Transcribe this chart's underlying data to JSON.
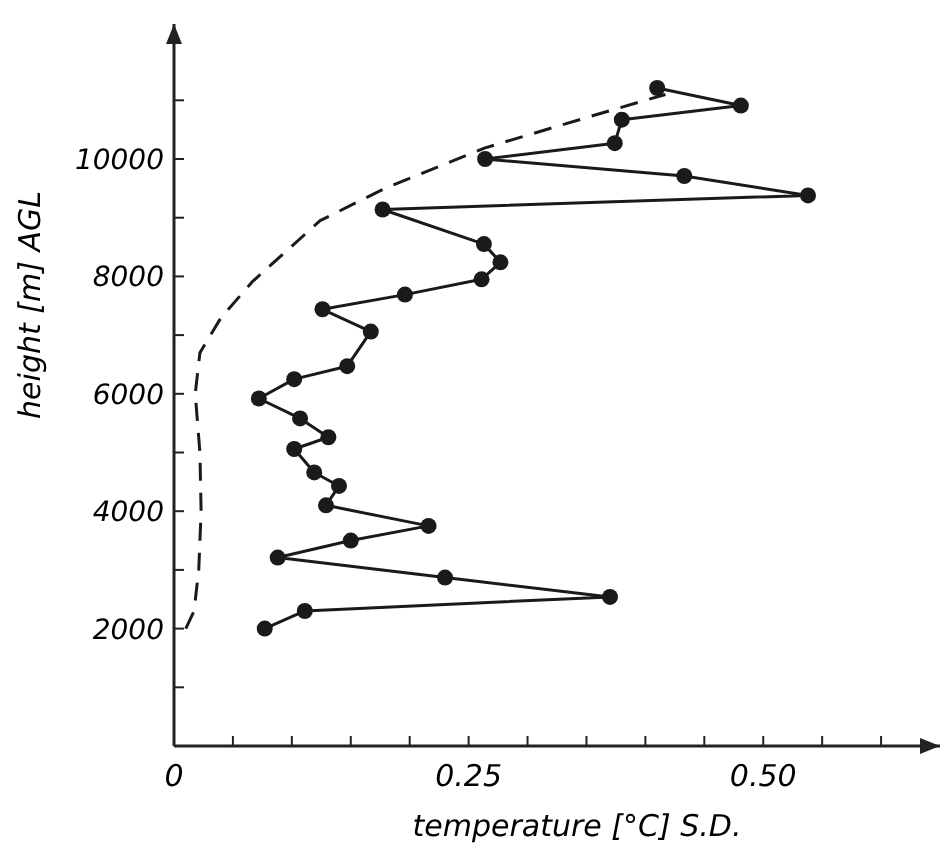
{
  "chart_data": {
    "type": "line",
    "xlabel": "temperature [°C] S.D.",
    "ylabel": "height [m] AGL",
    "xlim": [
      0,
      0.65
    ],
    "ylim": [
      0,
      12300
    ],
    "xticks": [
      0,
      {
        "value": 0.05,
        "label": null
      },
      {
        "value": 0.1,
        "label": null
      },
      {
        "value": 0.15,
        "label": null
      },
      {
        "value": 0.2,
        "label": null
      },
      {
        "value": 0.25,
        "label": "0.25"
      },
      {
        "value": 0.3,
        "label": null
      },
      {
        "value": 0.35,
        "label": null
      },
      {
        "value": 0.4,
        "label": null
      },
      {
        "value": 0.45,
        "label": null
      },
      {
        "value": 0.5,
        "label": "0.50"
      },
      {
        "value": 0.55,
        "label": null
      },
      {
        "value": 0.6,
        "label": null
      }
    ],
    "yticks": [
      {
        "value": 1000,
        "label": null
      },
      2000,
      {
        "value": 3000,
        "label": null
      },
      4000,
      {
        "value": 5000,
        "label": null
      },
      6000,
      {
        "value": 7000,
        "label": null
      },
      8000,
      {
        "value": 9000,
        "label": null
      },
      10000,
      {
        "value": 11000,
        "label": null
      }
    ],
    "grid": false,
    "series": [
      {
        "color": "#1a1a1a",
        "marker": "circle",
        "line_style": "solid",
        "x": [
          0.077,
          0.111,
          0.37,
          0.23,
          0.088,
          0.15,
          0.216,
          0.129,
          0.14,
          0.119,
          0.102,
          0.131,
          0.107,
          0.072,
          0.102,
          0.147,
          0.167,
          0.126,
          0.196,
          0.261,
          0.277,
          0.263,
          0.177,
          0.538,
          0.433,
          0.264,
          0.374,
          0.38,
          0.481,
          0.41
        ],
        "values": [
          2000,
          2300,
          2540,
          2870,
          3210,
          3500,
          3750,
          4100,
          4430,
          4660,
          5060,
          5260,
          5580,
          5920,
          6250,
          6470,
          7060,
          7440,
          7690,
          7950,
          8240,
          8550,
          9140,
          9380,
          9710,
          10000,
          10270,
          10670,
          10910,
          11210
        ]
      },
      {
        "color": "#1a1a1a",
        "marker": "none",
        "line_style": "dashed",
        "x": [
          0.01,
          0.017,
          0.021,
          0.023,
          0.022,
          0.018,
          0.022,
          0.04,
          0.067,
          0.124,
          0.18,
          0.264,
          0.349,
          0.417
        ],
        "values": [
          2000,
          2300,
          3000,
          4000,
          5000,
          6000,
          6700,
          7300,
          7920,
          8950,
          9510,
          10190,
          10700,
          11100
        ]
      }
    ]
  }
}
